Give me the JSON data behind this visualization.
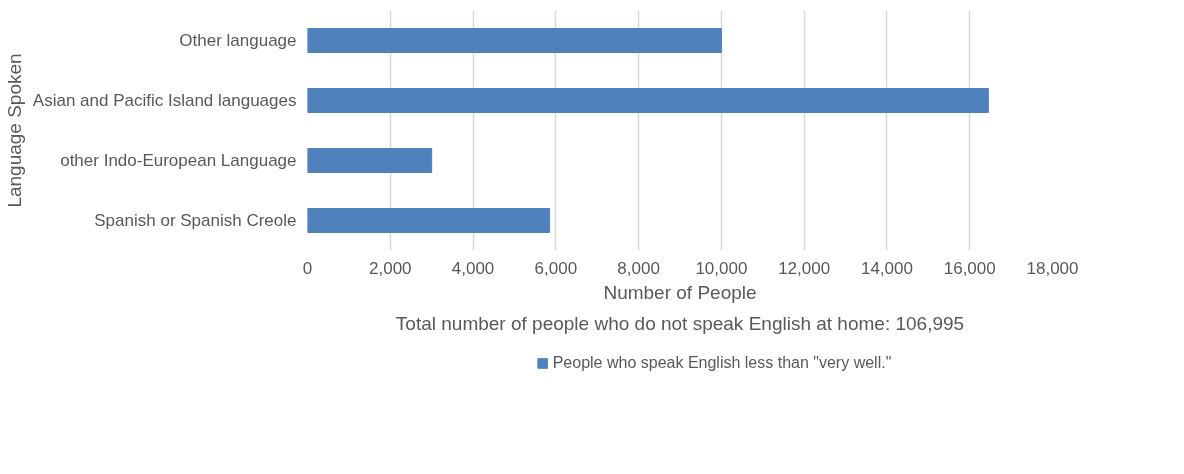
{
  "chart_data": {
    "type": "bar",
    "orientation": "horizontal",
    "xlabel": "Number of People",
    "ylabel": "Language Spoken",
    "categories": [
      "Other language",
      "Asian and Pacific Island languages",
      "other Indo-European Language",
      "Spanish or Spanish Creole"
    ],
    "series": [
      {
        "name": "People who speak English less than \"very well.\"",
        "color": "#4f81bd",
        "values": [
          10000,
          16450,
          3000,
          5850
        ]
      }
    ],
    "xlim": [
      0,
      18000
    ],
    "xticks": [
      {
        "value": 0,
        "label": "0"
      },
      {
        "value": 2000,
        "label": "2,000"
      },
      {
        "value": 4000,
        "label": "4,000"
      },
      {
        "value": 6000,
        "label": "6,000"
      },
      {
        "value": 8000,
        "label": "8,000"
      },
      {
        "value": 10000,
        "label": "10,000"
      },
      {
        "value": 12000,
        "label": "12,000"
      },
      {
        "value": 14000,
        "label": "14,000"
      },
      {
        "value": 16000,
        "label": "16,000"
      },
      {
        "value": 18000,
        "label": "18,000"
      }
    ],
    "grid": "x",
    "legend": "bottom",
    "annotations": [
      "Total number of people who do not speak English at home: 106,995"
    ]
  }
}
